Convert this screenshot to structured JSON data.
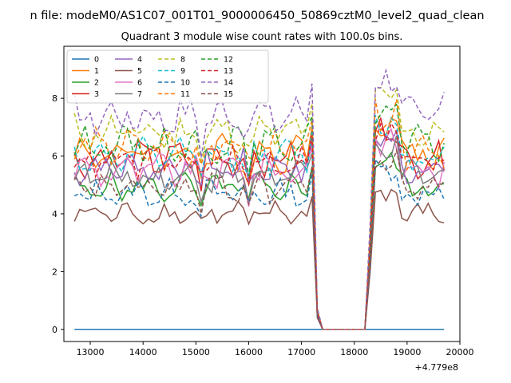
{
  "figure": {
    "suptitle": "n file: modeM0/AS1C07_001T01_9000006450_50869cztM0_level2_quad_clean"
  },
  "chart_data": {
    "type": "line",
    "title": "Quadrant 3 module wise count rates with 100.0s bins.",
    "xlabel": "",
    "ylabel": "",
    "x_offset_label": "+4.779e8",
    "xlim": [
      12500,
      20000
    ],
    "ylim": [
      -0.42,
      9.8
    ],
    "xticks": [
      13000,
      14000,
      15000,
      16000,
      17000,
      18000,
      19000,
      20000
    ],
    "yticks": [
      0,
      2,
      4,
      6,
      8
    ],
    "x_start": 12700,
    "x_step": 100,
    "gap_x_range": [
      17350,
      18280
    ],
    "series": [
      {
        "name": "0",
        "color": "#1f77b4",
        "dash": false,
        "base": 0.0,
        "amp": 0.0
      },
      {
        "name": "1",
        "color": "#ff7f0e",
        "dash": false,
        "base": 6.1,
        "amp": 0.55
      },
      {
        "name": "2",
        "color": "#2ca02c",
        "dash": false,
        "base": 4.9,
        "amp": 0.45
      },
      {
        "name": "3",
        "color": "#d62728",
        "dash": false,
        "base": 5.9,
        "amp": 0.5
      },
      {
        "name": "4",
        "color": "#9467bd",
        "dash": false,
        "base": 5.6,
        "amp": 0.5
      },
      {
        "name": "5",
        "color": "#8c564b",
        "dash": false,
        "base": 4.0,
        "amp": 0.35
      },
      {
        "name": "6",
        "color": "#e377c2",
        "dash": false,
        "base": 5.5,
        "amp": 0.5
      },
      {
        "name": "7",
        "color": "#7f7f7f",
        "dash": false,
        "base": 5.3,
        "amp": 0.45
      },
      {
        "name": "8",
        "color": "#bcbd22",
        "dash": true,
        "base": 6.8,
        "amp": 0.55
      },
      {
        "name": "9",
        "color": "#17becf",
        "dash": true,
        "base": 6.0,
        "amp": 0.5
      },
      {
        "name": "10",
        "color": "#1f77b4",
        "dash": true,
        "base": 4.7,
        "amp": 0.4
      },
      {
        "name": "11",
        "color": "#ff7f0e",
        "dash": true,
        "base": 6.3,
        "amp": 0.55
      },
      {
        "name": "12",
        "color": "#2ca02c",
        "dash": true,
        "base": 6.4,
        "amp": 0.5
      },
      {
        "name": "13",
        "color": "#d62728",
        "dash": true,
        "base": 5.8,
        "amp": 0.45
      },
      {
        "name": "14",
        "color": "#9467bd",
        "dash": true,
        "base": 7.4,
        "amp": 0.6
      },
      {
        "name": "15",
        "color": "#8c564b",
        "dash": true,
        "base": 4.9,
        "amp": 0.45
      }
    ],
    "legend_location": "upper-left",
    "legend_columns": 4
  }
}
